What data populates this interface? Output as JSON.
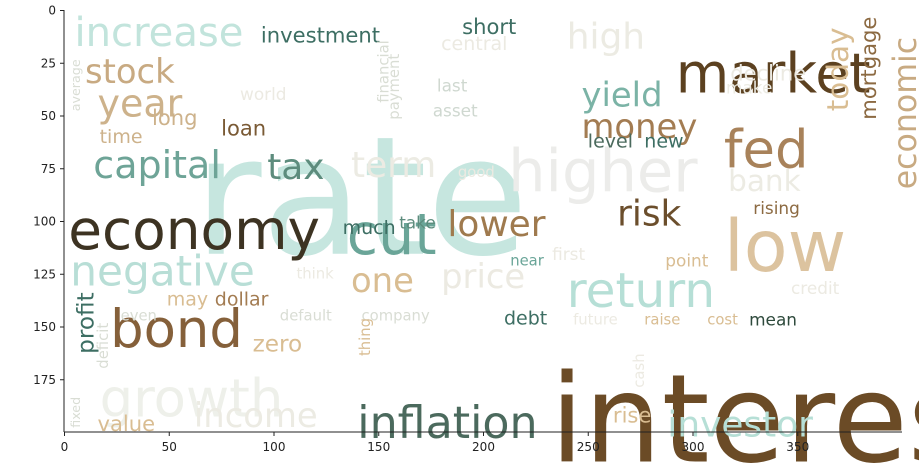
{
  "chart_data": {
    "type": "wordcloud",
    "x_ticks": [
      0,
      50,
      100,
      150,
      200,
      250,
      300,
      350
    ],
    "y_ticks": [
      0,
      25,
      50,
      75,
      100,
      125,
      150,
      175
    ],
    "xlim": [
      0,
      400
    ],
    "ylim": [
      200,
      0
    ],
    "grid": false,
    "palette": [
      "#5c4120",
      "#7a5a35",
      "#d9b98e",
      "#e8e6dc",
      "#a9dcd2",
      "#77b3a6",
      "#3d6e63",
      "#2e4a3c"
    ],
    "words": [
      {
        "text": "rate",
        "x": 62,
        "y": 43,
        "size": 78,
        "color": "#c6e6df",
        "rot": 0
      },
      {
        "text": "interest",
        "x": 232,
        "y": 160,
        "size": 58,
        "color": "#6b4b26",
        "rot": 0
      },
      {
        "text": "market",
        "x": 292,
        "y": 15,
        "size": 26,
        "color": "#5c4120",
        "rot": 0
      },
      {
        "text": "low",
        "x": 315,
        "y": 92,
        "size": 34,
        "color": "#dcc39f",
        "rot": 0
      },
      {
        "text": "fed",
        "x": 315,
        "y": 52,
        "size": 25,
        "color": "#a8825a",
        "rot": 0
      },
      {
        "text": "higher",
        "x": 212,
        "y": 60,
        "size": 28,
        "color": "#ececea",
        "rot": 0
      },
      {
        "text": "economy",
        "x": 2,
        "y": 89,
        "size": 26,
        "color": "#3d3322",
        "rot": 0
      },
      {
        "text": "cut",
        "x": 135,
        "y": 91,
        "size": 27,
        "color": "#6aa598",
        "rot": 0
      },
      {
        "text": "bond",
        "x": 22,
        "y": 137,
        "size": 25,
        "color": "#85603a",
        "rot": 0
      },
      {
        "text": "growth",
        "x": 17,
        "y": 170,
        "size": 25,
        "color": "#eef0ea",
        "rot": 0
      },
      {
        "text": "return",
        "x": 240,
        "y": 120,
        "size": 23,
        "color": "#b6dfd6",
        "rot": 0
      },
      {
        "text": "inflation",
        "x": 140,
        "y": 184,
        "size": 21,
        "color": "#4b6a5d",
        "rot": 0
      },
      {
        "text": "investor",
        "x": 288,
        "y": 187,
        "size": 17,
        "color": "#b6dfd6",
        "rot": 0
      },
      {
        "text": "negative",
        "x": 3,
        "y": 112,
        "size": 20,
        "color": "#b8ded6",
        "rot": 0
      },
      {
        "text": "increase",
        "x": 5,
        "y": 0,
        "size": 19,
        "color": "#c2e4dc",
        "rot": 0
      },
      {
        "text": "capital",
        "x": 14,
        "y": 63,
        "size": 18,
        "color": "#6ea497",
        "rot": 0
      },
      {
        "text": "tax",
        "x": 97,
        "y": 65,
        "size": 17,
        "color": "#5d8c7d",
        "rot": 0
      },
      {
        "text": "term",
        "x": 137,
        "y": 64,
        "size": 17,
        "color": "#ecebe3",
        "rot": 0
      },
      {
        "text": "high",
        "x": 240,
        "y": 3,
        "size": 17,
        "color": "#ecebe3",
        "rot": 0
      },
      {
        "text": "stock",
        "x": 10,
        "y": 20,
        "size": 16,
        "color": "#c8aa82",
        "rot": 0
      },
      {
        "text": "year",
        "x": 16,
        "y": 34,
        "size": 18,
        "color": "#cdb28b",
        "rot": 0
      },
      {
        "text": "yield",
        "x": 247,
        "y": 31,
        "size": 16,
        "color": "#7bb3a6",
        "rot": 0
      },
      {
        "text": "money",
        "x": 247,
        "y": 46,
        "size": 16,
        "color": "#a37c52",
        "rot": 0
      },
      {
        "text": "risk",
        "x": 264,
        "y": 87,
        "size": 17,
        "color": "#6b4e2c",
        "rot": 0
      },
      {
        "text": "lower",
        "x": 183,
        "y": 92,
        "size": 17,
        "color": "#9f7a4e",
        "rot": 0
      },
      {
        "text": "price",
        "x": 180,
        "y": 117,
        "size": 16,
        "color": "#eceae2",
        "rot": 0
      },
      {
        "text": "one",
        "x": 137,
        "y": 119,
        "size": 16,
        "color": "#d9bd92",
        "rot": 0
      },
      {
        "text": "income",
        "x": 62,
        "y": 183,
        "size": 16,
        "color": "#ecebe3",
        "rot": 0
      },
      {
        "text": "bank",
        "x": 317,
        "y": 73,
        "size": 14,
        "color": "#ecebe3",
        "rot": 0
      },
      {
        "text": "economic",
        "x": 396,
        "y": 85,
        "size": 15,
        "color": "#c8aa82",
        "rot": -90
      },
      {
        "text": "today",
        "x": 364,
        "y": 48,
        "size": 14,
        "color": "#d9bd92",
        "rot": -90
      },
      {
        "text": "mortgage",
        "x": 380,
        "y": 52,
        "size": 10,
        "color": "#8c6a42",
        "rot": -90
      },
      {
        "text": "investment",
        "x": 94,
        "y": 6,
        "size": 10,
        "color": "#3d6e63",
        "rot": 0
      },
      {
        "text": "short",
        "x": 190,
        "y": 2,
        "size": 10,
        "color": "#3d6e63",
        "rot": 0
      },
      {
        "text": "central",
        "x": 180,
        "y": 11,
        "size": 9,
        "color": "#eceae2",
        "rot": 0
      },
      {
        "text": "decline",
        "x": 318,
        "y": 24,
        "size": 10,
        "color": "#eceae2",
        "rot": 0
      },
      {
        "text": "long",
        "x": 42,
        "y": 45,
        "size": 10,
        "color": "#cdb28b",
        "rot": 0
      },
      {
        "text": "time",
        "x": 17,
        "y": 55,
        "size": 9,
        "color": "#cdb28b",
        "rot": 0
      },
      {
        "text": "loan",
        "x": 75,
        "y": 50,
        "size": 10,
        "color": "#7a5a35",
        "rot": 0
      },
      {
        "text": "world",
        "x": 84,
        "y": 35,
        "size": 8,
        "color": "#eceae2",
        "rot": 0
      },
      {
        "text": "payment",
        "x": 155,
        "y": 52,
        "size": 7,
        "color": "#d9ddd4",
        "rot": -90
      },
      {
        "text": "financial",
        "x": 150,
        "y": 44,
        "size": 7,
        "color": "#d9ddd4",
        "rot": -90
      },
      {
        "text": "asset",
        "x": 176,
        "y": 43,
        "size": 8,
        "color": "#cfd8d0",
        "rot": 0
      },
      {
        "text": "last",
        "x": 178,
        "y": 31,
        "size": 8,
        "color": "#cfd8d0",
        "rot": 0
      },
      {
        "text": "make",
        "x": 316,
        "y": 32,
        "size": 8,
        "color": "#ecebe3",
        "rot": 0
      },
      {
        "text": "level",
        "x": 250,
        "y": 57,
        "size": 9,
        "color": "#4b6a5d",
        "rot": 0
      },
      {
        "text": "new",
        "x": 277,
        "y": 57,
        "size": 9,
        "color": "#3d6e63",
        "rot": 0
      },
      {
        "text": "good",
        "x": 188,
        "y": 73,
        "size": 7,
        "color": "#eceae2",
        "rot": 0
      },
      {
        "text": "rising",
        "x": 329,
        "y": 89,
        "size": 8,
        "color": "#8c6a42",
        "rot": 0
      },
      {
        "text": "much",
        "x": 133,
        "y": 98,
        "size": 9,
        "color": "#3d6e63",
        "rot": 0
      },
      {
        "text": "take",
        "x": 160,
        "y": 96,
        "size": 8,
        "color": "#5d8c7d",
        "rot": 0
      },
      {
        "text": "first",
        "x": 233,
        "y": 111,
        "size": 8,
        "color": "#eceae2",
        "rot": 0
      },
      {
        "text": "near",
        "x": 213,
        "y": 115,
        "size": 7,
        "color": "#6aa598",
        "rot": 0
      },
      {
        "text": "point",
        "x": 287,
        "y": 114,
        "size": 8,
        "color": "#d9bd92",
        "rot": 0
      },
      {
        "text": "credit",
        "x": 347,
        "y": 127,
        "size": 8,
        "color": "#eceae2",
        "rot": 0
      },
      {
        "text": "think",
        "x": 111,
        "y": 121,
        "size": 7,
        "color": "#eceae2",
        "rot": 0
      },
      {
        "text": "may",
        "x": 49,
        "y": 132,
        "size": 9,
        "color": "#d9bd92",
        "rot": 0
      },
      {
        "text": "dollar",
        "x": 72,
        "y": 132,
        "size": 9,
        "color": "#a37c52",
        "rot": 0
      },
      {
        "text": "even",
        "x": 27,
        "y": 141,
        "size": 7,
        "color": "#d9ddd4",
        "rot": 0
      },
      {
        "text": "default",
        "x": 103,
        "y": 141,
        "size": 7,
        "color": "#d9ddd4",
        "rot": 0
      },
      {
        "text": "company",
        "x": 142,
        "y": 141,
        "size": 7,
        "color": "#d9ddd4",
        "rot": 0
      },
      {
        "text": "debt",
        "x": 210,
        "y": 141,
        "size": 9,
        "color": "#3d6e63",
        "rot": 0
      },
      {
        "text": "future",
        "x": 243,
        "y": 143,
        "size": 7,
        "color": "#eceae2",
        "rot": 0
      },
      {
        "text": "raise",
        "x": 277,
        "y": 143,
        "size": 7,
        "color": "#d9bd92",
        "rot": 0
      },
      {
        "text": "cost",
        "x": 307,
        "y": 143,
        "size": 7,
        "color": "#d9bd92",
        "rot": 0
      },
      {
        "text": "mean",
        "x": 327,
        "y": 142,
        "size": 8,
        "color": "#2e4a3c",
        "rot": 0
      },
      {
        "text": "profit",
        "x": 6,
        "y": 163,
        "size": 11,
        "color": "#3d6e63",
        "rot": -90
      },
      {
        "text": "deficit",
        "x": 16,
        "y": 170,
        "size": 7,
        "color": "#d9ddd4",
        "rot": -90
      },
      {
        "text": "zero",
        "x": 90,
        "y": 152,
        "size": 11,
        "color": "#d9bd92",
        "rot": 0
      },
      {
        "text": "thing",
        "x": 141,
        "y": 164,
        "size": 7,
        "color": "#d9bd92",
        "rot": -90
      },
      {
        "text": "value",
        "x": 16,
        "y": 190,
        "size": 10,
        "color": "#d9bd92",
        "rot": 0
      },
      {
        "text": "rise",
        "x": 262,
        "y": 186,
        "size": 10,
        "color": "#d9bd92",
        "rot": 0
      },
      {
        "text": "cash",
        "x": 272,
        "y": 179,
        "size": 7,
        "color": "#eceae2",
        "rot": -90
      },
      {
        "text": "average",
        "x": 3,
        "y": 48,
        "size": 6,
        "color": "#d9ddd4",
        "rot": -90
      },
      {
        "text": "fixed",
        "x": 3,
        "y": 198,
        "size": 6,
        "color": "#d9ddd4",
        "rot": -90
      }
    ]
  }
}
